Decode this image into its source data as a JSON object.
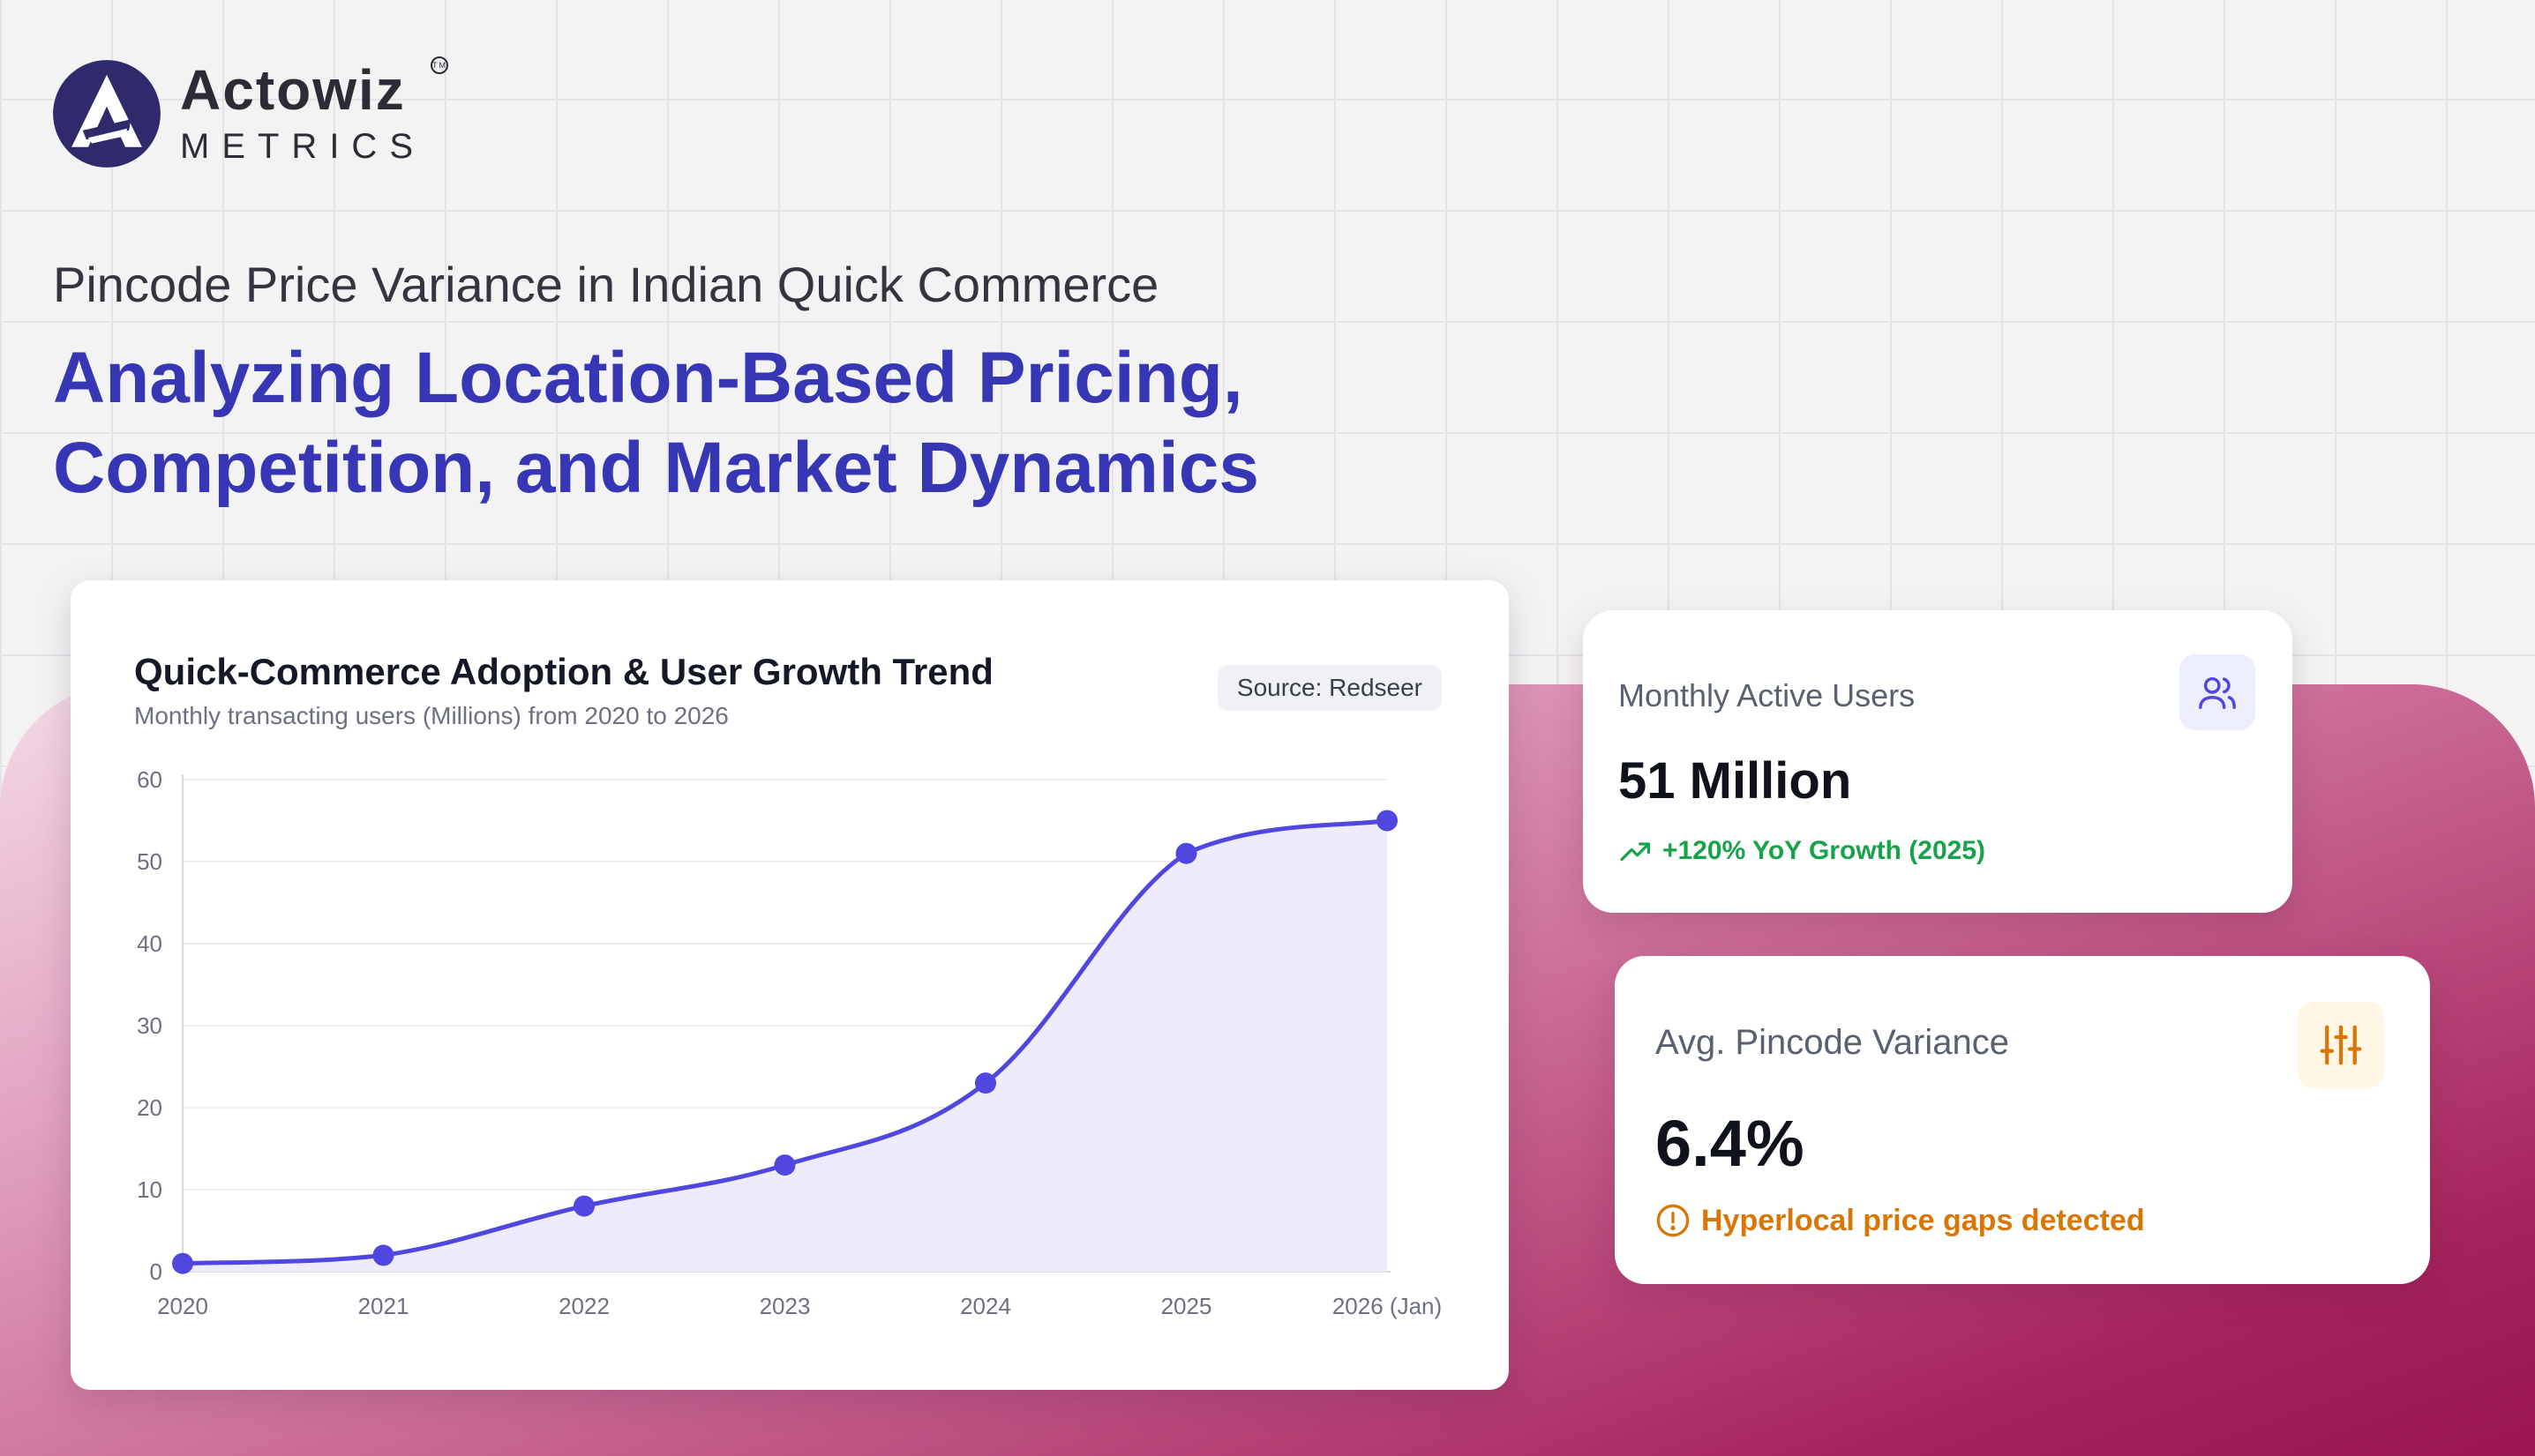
{
  "brand": {
    "name": "Actowiz",
    "sub": "METRICS",
    "tm": "TM"
  },
  "header": {
    "eyebrow": "Pincode Price Variance in Indian Quick Commerce",
    "headline_line1": "Analyzing Location-Based Pricing,",
    "headline_line2": "Competition, and Market Dynamics"
  },
  "chart_card": {
    "source": "Source: Redseer"
  },
  "chart_data": {
    "type": "area",
    "title": "Quick-Commerce Adoption & User Growth Trend",
    "subtitle": "Monthly transacting users (Millions) from 2020 to 2026",
    "categories": [
      "2020",
      "2021",
      "2022",
      "2023",
      "2024",
      "2025",
      "2026 (Jan)"
    ],
    "series": [
      {
        "values": [
          1,
          2,
          8,
          13,
          23,
          51,
          55
        ]
      }
    ],
    "ylim": [
      0,
      60
    ],
    "yticks": [
      0,
      10,
      20,
      30,
      40,
      50,
      60
    ],
    "grid": true,
    "xlabel": "",
    "ylabel": "",
    "colors": {
      "line": "#5046e0",
      "fill": "#eeecfb",
      "grid": "#ededf0",
      "axis": "#d8d9de"
    }
  },
  "stats": {
    "users": {
      "label": "Monthly Active Users",
      "value": "51 Million",
      "note": "+120% YoY Growth (2025)",
      "icon": "users-icon",
      "color": "#16a34a"
    },
    "variance": {
      "label": "Avg. Pincode Variance",
      "value": "6.4%",
      "note": "Hyperlocal price gaps detected",
      "icon": "sliders-icon",
      "color": "#d97706"
    }
  }
}
